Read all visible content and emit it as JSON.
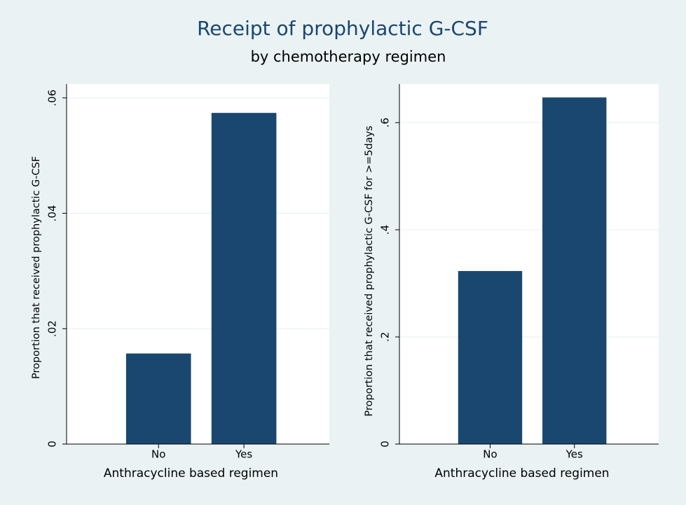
{
  "title": "Receipt of prophylactic G-CSF",
  "subtitle": "by chemotherapy regimen",
  "chart_data": [
    {
      "type": "bar",
      "categories": [
        "No",
        "Yes"
      ],
      "values": [
        0.0157,
        0.0574
      ],
      "color": "#1a476f",
      "xlabel": "Anthracycline based regimen",
      "ylabel": "Proportion that received prophylactic G-CSF",
      "ylim": [
        0,
        0.0624
      ],
      "yticks": [
        0,
        {
          "value": 0.02,
          "label": ".02"
        },
        {
          "value": 0.04,
          "label": ".04"
        },
        {
          "value": 0.06,
          "label": ".06"
        }
      ],
      "grid": true
    },
    {
      "type": "bar",
      "categories": [
        "No",
        "Yes"
      ],
      "values": [
        0.323,
        0.647
      ],
      "color": "#1a476f",
      "xlabel": "Anthracycline based regimen",
      "ylabel": "Proportion that received prophylactic G-CSF for >=5days",
      "ylim": [
        0,
        0.672
      ],
      "yticks": [
        0,
        {
          "value": 0.2,
          "label": ".2"
        },
        {
          "value": 0.4,
          "label": ".4"
        },
        {
          "value": 0.6,
          "label": ".6"
        }
      ],
      "grid": true
    }
  ]
}
